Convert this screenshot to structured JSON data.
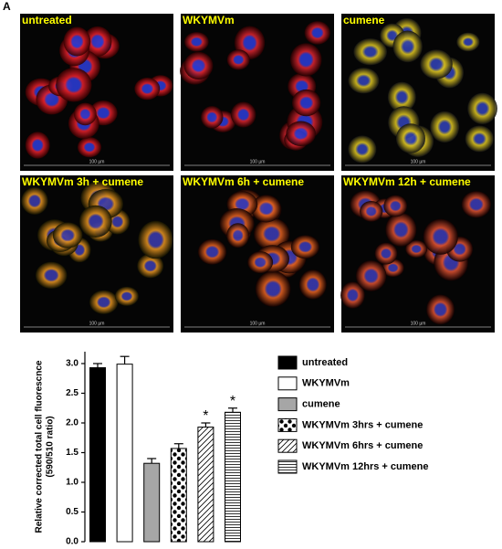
{
  "figure_label": "A",
  "panels": [
    {
      "label": "untreated",
      "scale_bar": "100 µm"
    },
    {
      "label": "WKYMVm",
      "scale_bar": "100 µm"
    },
    {
      "label": "cumene",
      "scale_bar": "100 µm"
    },
    {
      "label": "WKYMVm 3h + cumene",
      "scale_bar": "100 µm"
    },
    {
      "label": "WKYMVm 6h + cumene",
      "scale_bar": "100 µm"
    },
    {
      "label": "WKYMVm 12h + cumene",
      "scale_bar": "100 µm"
    }
  ],
  "chart_data": {
    "type": "bar",
    "ylabel": [
      "Relative corrected total cell fluorescnce",
      "(590/510 ratio)"
    ],
    "categories": [
      "untreated",
      "WKYMVm",
      "cumene",
      "WKYMVm 3hrs + cumene",
      "WKYMVm 6hrs + cumene",
      "WKYMVm 12hrs + cumene"
    ],
    "values": [
      2.93,
      2.99,
      1.32,
      1.57,
      1.93,
      2.18
    ],
    "errors": [
      0.07,
      0.13,
      0.08,
      0.08,
      0.07,
      0.07
    ],
    "colors": [
      "#000000",
      "#ffffff",
      "#a6a6a6",
      "#ffffff",
      "#ffffff",
      "#ffffff"
    ],
    "patterns": [
      "solid",
      "solid",
      "solid",
      "dots",
      "diagonal",
      "horizontal"
    ],
    "significance": [
      null,
      null,
      null,
      null,
      "*",
      "*"
    ],
    "ylim": [
      0,
      3.2
    ],
    "yticks": [
      {
        "value": 0,
        "label": "0.0"
      },
      {
        "value": 0.5,
        "label": "0.5"
      },
      {
        "value": 1,
        "label": "1.0"
      },
      {
        "value": 1.5,
        "label": "1.5"
      },
      {
        "value": 2,
        "label": "2.0"
      },
      {
        "value": 2.5,
        "label": "2.5"
      },
      {
        "value": 3,
        "label": "3.0"
      }
    ],
    "legend": "right"
  }
}
